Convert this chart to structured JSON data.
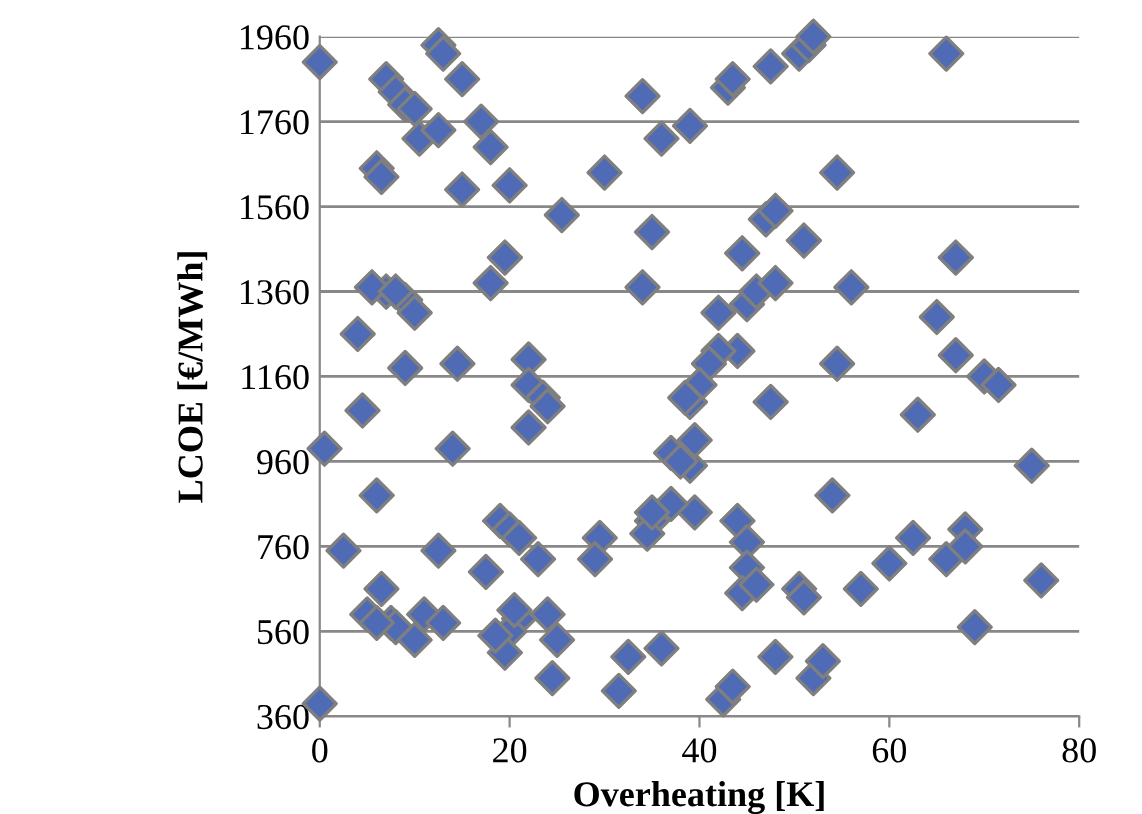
{
  "chart_data": {
    "type": "scatter",
    "xlabel": "Overheating [K]",
    "ylabel": "LCOE [€/MWh]",
    "xlim": [
      0,
      80
    ],
    "xticks": [
      0,
      20,
      40,
      60,
      80
    ],
    "ylim": [
      360,
      1960
    ],
    "yticks": [
      360,
      560,
      760,
      960,
      1160,
      1360,
      1560,
      1760,
      1960
    ],
    "grid": "y",
    "marker": "diamond",
    "series": [
      {
        "color": "#4f6bb5",
        "x": [
          0,
          7,
          8,
          9,
          10,
          12.5,
          13,
          15,
          17,
          18,
          6,
          6.5,
          10.5,
          12.5,
          15,
          20,
          25.5,
          30,
          34,
          36,
          39,
          43,
          43.5,
          47.5,
          50.5,
          51.5,
          52,
          66,
          54.5,
          47,
          48,
          44.5,
          51,
          67,
          56,
          35,
          34,
          45,
          46,
          48,
          44,
          47.5,
          54.5,
          42,
          42,
          41,
          40,
          39,
          38.5,
          37,
          39,
          39.5,
          38,
          39.5,
          37,
          35,
          34.5,
          36,
          35,
          44,
          45,
          45,
          44.5,
          46,
          48,
          50.5,
          51,
          52,
          53,
          54,
          57,
          60,
          62.5,
          63,
          65,
          66,
          67,
          68,
          68,
          69,
          70,
          71.5,
          75,
          76,
          42.5,
          43.5,
          31.5,
          32.5,
          29.5,
          29,
          24.5,
          25,
          24,
          23,
          21,
          20,
          19.5,
          20.5,
          19,
          20,
          21,
          22,
          22,
          22,
          23.5,
          24,
          19.5,
          18,
          14,
          14.5,
          7,
          9,
          10,
          5.5,
          4,
          4.5,
          5,
          6,
          6.5,
          7.5,
          8,
          9,
          11,
          12.5,
          10,
          13,
          17.5,
          18.5,
          2.5,
          0.5,
          0,
          6,
          8
        ],
        "values": [
          1900,
          1860,
          1830,
          1800,
          1790,
          1940,
          1920,
          1860,
          1760,
          1700,
          1650,
          1630,
          1720,
          1740,
          1600,
          1610,
          1540,
          1640,
          1820,
          1720,
          1750,
          1840,
          1860,
          1890,
          1920,
          1940,
          1960,
          1920,
          1640,
          1530,
          1550,
          1450,
          1480,
          1440,
          1370,
          1500,
          1370,
          1330,
          1360,
          1380,
          1220,
          1100,
          1190,
          1310,
          1220,
          1190,
          1140,
          1100,
          1110,
          980,
          950,
          1010,
          960,
          840,
          860,
          820,
          790,
          520,
          840,
          820,
          770,
          710,
          650,
          670,
          500,
          660,
          640,
          450,
          490,
          880,
          660,
          720,
          780,
          1070,
          1300,
          730,
          1210,
          800,
          760,
          570,
          1160,
          1140,
          950,
          680,
          400,
          430,
          420,
          500,
          780,
          730,
          450,
          540,
          600,
          730,
          590,
          560,
          510,
          610,
          820,
          800,
          780,
          1040,
          1200,
          1140,
          1110,
          1090,
          1440,
          1380,
          990,
          1190,
          1360,
          1340,
          1310,
          1370,
          1260,
          1080,
          600,
          880,
          660,
          580,
          570,
          1180,
          600,
          750,
          540,
          580,
          700,
          550,
          750,
          990,
          390,
          580,
          1360
        ]
      }
    ]
  }
}
